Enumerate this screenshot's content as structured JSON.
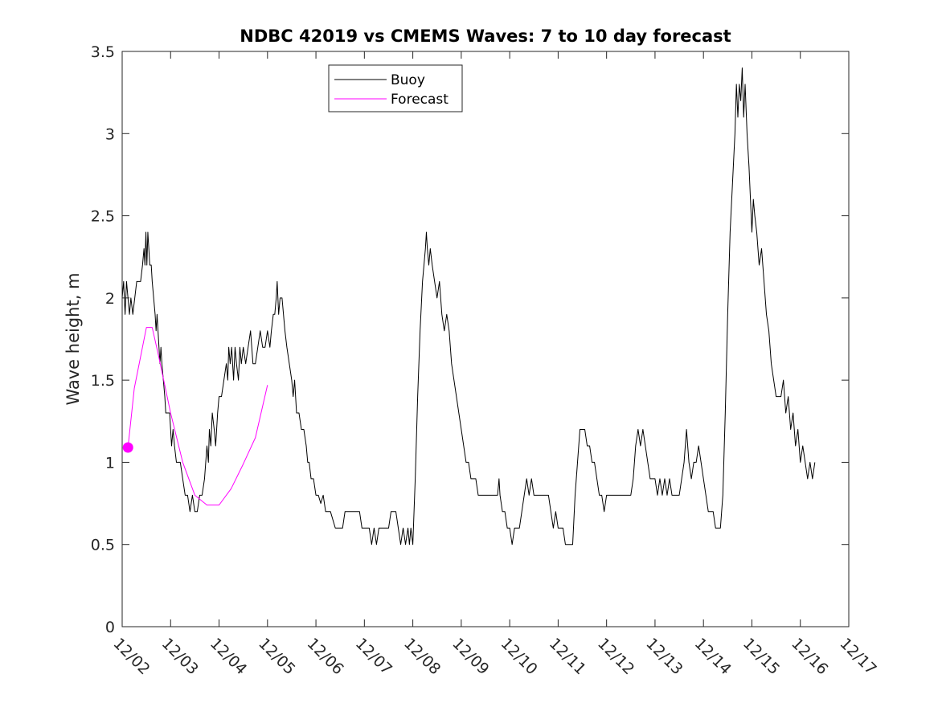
{
  "chart_data": {
    "type": "line",
    "title": "NDBC 42019 vs CMEMS Waves: 7 to 10 day forecast",
    "xlabel": "",
    "ylabel": "Wave height, m",
    "xlim": [
      0,
      15
    ],
    "ylim": [
      0,
      3.5
    ],
    "grid": false,
    "legend_position": "top-center",
    "x_ticks": [
      0,
      1,
      2,
      3,
      4,
      5,
      6,
      7,
      8,
      9,
      10,
      11,
      12,
      13,
      14,
      15
    ],
    "x_tick_labels": [
      "12/02",
      "12/03",
      "12/04",
      "12/05",
      "12/06",
      "12/07",
      "12/08",
      "12/09",
      "12/10",
      "12/11",
      "12/12",
      "12/13",
      "12/14",
      "12/15",
      "12/16",
      "12/17"
    ],
    "y_ticks": [
      0,
      0.5,
      1,
      1.5,
      2,
      2.5,
      3,
      3.5
    ],
    "y_tick_labels": [
      "0",
      "0.5",
      "1",
      "1.5",
      "2",
      "2.5",
      "3",
      "3.5"
    ],
    "x_unit": "days since 12/02 00:00",
    "series": [
      {
        "name": "Buoy",
        "color": "#000000",
        "points": [
          [
            0.0,
            2.0
          ],
          [
            0.03,
            2.1
          ],
          [
            0.06,
            1.9
          ],
          [
            0.09,
            2.1
          ],
          [
            0.12,
            2.0
          ],
          [
            0.15,
            1.9
          ],
          [
            0.18,
            2.0
          ],
          [
            0.22,
            1.9
          ],
          [
            0.26,
            2.0
          ],
          [
            0.3,
            2.1
          ],
          [
            0.38,
            2.1
          ],
          [
            0.42,
            2.2
          ],
          [
            0.45,
            2.3
          ],
          [
            0.47,
            2.2
          ],
          [
            0.49,
            2.4
          ],
          [
            0.51,
            2.2
          ],
          [
            0.53,
            2.4
          ],
          [
            0.55,
            2.3
          ],
          [
            0.57,
            2.2
          ],
          [
            0.6,
            2.2
          ],
          [
            0.62,
            2.1
          ],
          [
            0.65,
            2.0
          ],
          [
            0.68,
            1.9
          ],
          [
            0.7,
            1.8
          ],
          [
            0.72,
            1.9
          ],
          [
            0.74,
            1.8
          ],
          [
            0.76,
            1.7
          ],
          [
            0.78,
            1.6
          ],
          [
            0.8,
            1.7
          ],
          [
            0.82,
            1.6
          ],
          [
            0.85,
            1.5
          ],
          [
            0.88,
            1.4
          ],
          [
            0.9,
            1.3
          ],
          [
            0.98,
            1.3
          ],
          [
            1.0,
            1.2
          ],
          [
            1.02,
            1.1
          ],
          [
            1.05,
            1.2
          ],
          [
            1.08,
            1.1
          ],
          [
            1.12,
            1.0
          ],
          [
            1.2,
            1.0
          ],
          [
            1.25,
            0.9
          ],
          [
            1.3,
            0.8
          ],
          [
            1.35,
            0.8
          ],
          [
            1.4,
            0.7
          ],
          [
            1.45,
            0.8
          ],
          [
            1.5,
            0.7
          ],
          [
            1.55,
            0.7
          ],
          [
            1.6,
            0.8
          ],
          [
            1.65,
            0.8
          ],
          [
            1.7,
            0.9
          ],
          [
            1.75,
            1.1
          ],
          [
            1.78,
            1.0
          ],
          [
            1.8,
            1.2
          ],
          [
            1.83,
            1.1
          ],
          [
            1.86,
            1.3
          ],
          [
            1.9,
            1.2
          ],
          [
            1.93,
            1.1
          ],
          [
            1.97,
            1.3
          ],
          [
            2.0,
            1.4
          ],
          [
            2.05,
            1.4
          ],
          [
            2.1,
            1.5
          ],
          [
            2.15,
            1.6
          ],
          [
            2.18,
            1.5
          ],
          [
            2.2,
            1.7
          ],
          [
            2.23,
            1.6
          ],
          [
            2.26,
            1.7
          ],
          [
            2.3,
            1.5
          ],
          [
            2.33,
            1.7
          ],
          [
            2.36,
            1.6
          ],
          [
            2.4,
            1.5
          ],
          [
            2.43,
            1.7
          ],
          [
            2.46,
            1.6
          ],
          [
            2.5,
            1.7
          ],
          [
            2.55,
            1.6
          ],
          [
            2.6,
            1.7
          ],
          [
            2.65,
            1.8
          ],
          [
            2.7,
            1.6
          ],
          [
            2.75,
            1.6
          ],
          [
            2.8,
            1.7
          ],
          [
            2.85,
            1.8
          ],
          [
            2.9,
            1.7
          ],
          [
            2.95,
            1.7
          ],
          [
            3.0,
            1.8
          ],
          [
            3.05,
            1.7
          ],
          [
            3.08,
            1.8
          ],
          [
            3.12,
            1.9
          ],
          [
            3.15,
            1.9
          ],
          [
            3.18,
            2.0
          ],
          [
            3.2,
            2.1
          ],
          [
            3.23,
            1.9
          ],
          [
            3.26,
            2.0
          ],
          [
            3.3,
            2.0
          ],
          [
            3.33,
            1.9
          ],
          [
            3.36,
            1.8
          ],
          [
            3.4,
            1.7
          ],
          [
            3.45,
            1.6
          ],
          [
            3.5,
            1.5
          ],
          [
            3.53,
            1.4
          ],
          [
            3.56,
            1.5
          ],
          [
            3.6,
            1.3
          ],
          [
            3.65,
            1.3
          ],
          [
            3.7,
            1.2
          ],
          [
            3.75,
            1.2
          ],
          [
            3.8,
            1.1
          ],
          [
            3.83,
            1.0
          ],
          [
            3.86,
            1.0
          ],
          [
            3.9,
            0.9
          ],
          [
            3.95,
            0.9
          ],
          [
            4.0,
            0.8
          ],
          [
            4.05,
            0.8
          ],
          [
            4.1,
            0.75
          ],
          [
            4.15,
            0.8
          ],
          [
            4.2,
            0.7
          ],
          [
            4.3,
            0.7
          ],
          [
            4.4,
            0.6
          ],
          [
            4.55,
            0.6
          ],
          [
            4.6,
            0.7
          ],
          [
            4.9,
            0.7
          ],
          [
            4.95,
            0.6
          ],
          [
            5.1,
            0.6
          ],
          [
            5.15,
            0.5
          ],
          [
            5.2,
            0.6
          ],
          [
            5.25,
            0.5
          ],
          [
            5.3,
            0.6
          ],
          [
            5.5,
            0.6
          ],
          [
            5.55,
            0.7
          ],
          [
            5.65,
            0.7
          ],
          [
            5.7,
            0.6
          ],
          [
            5.75,
            0.5
          ],
          [
            5.8,
            0.6
          ],
          [
            5.85,
            0.5
          ],
          [
            5.9,
            0.6
          ],
          [
            5.93,
            0.5
          ],
          [
            5.96,
            0.6
          ],
          [
            6.0,
            0.5
          ],
          [
            6.05,
            0.9
          ],
          [
            6.1,
            1.4
          ],
          [
            6.15,
            1.8
          ],
          [
            6.2,
            2.1
          ],
          [
            6.23,
            2.2
          ],
          [
            6.26,
            2.3
          ],
          [
            6.28,
            2.4
          ],
          [
            6.3,
            2.3
          ],
          [
            6.33,
            2.2
          ],
          [
            6.36,
            2.3
          ],
          [
            6.4,
            2.2
          ],
          [
            6.45,
            2.1
          ],
          [
            6.5,
            2.0
          ],
          [
            6.55,
            2.1
          ],
          [
            6.6,
            1.9
          ],
          [
            6.65,
            1.8
          ],
          [
            6.7,
            1.9
          ],
          [
            6.75,
            1.8
          ],
          [
            6.8,
            1.6
          ],
          [
            6.85,
            1.5
          ],
          [
            6.9,
            1.4
          ],
          [
            6.95,
            1.3
          ],
          [
            7.0,
            1.2
          ],
          [
            7.05,
            1.1
          ],
          [
            7.1,
            1.0
          ],
          [
            7.15,
            1.0
          ],
          [
            7.2,
            0.9
          ],
          [
            7.3,
            0.9
          ],
          [
            7.35,
            0.8
          ],
          [
            7.75,
            0.8
          ],
          [
            7.78,
            0.9
          ],
          [
            7.8,
            0.8
          ],
          [
            7.85,
            0.7
          ],
          [
            7.9,
            0.7
          ],
          [
            7.95,
            0.6
          ],
          [
            8.0,
            0.6
          ],
          [
            8.05,
            0.5
          ],
          [
            8.1,
            0.6
          ],
          [
            8.2,
            0.6
          ],
          [
            8.25,
            0.7
          ],
          [
            8.3,
            0.8
          ],
          [
            8.35,
            0.9
          ],
          [
            8.4,
            0.8
          ],
          [
            8.45,
            0.9
          ],
          [
            8.5,
            0.8
          ],
          [
            8.8,
            0.8
          ],
          [
            8.85,
            0.7
          ],
          [
            8.9,
            0.6
          ],
          [
            8.95,
            0.7
          ],
          [
            9.0,
            0.6
          ],
          [
            9.1,
            0.6
          ],
          [
            9.15,
            0.5
          ],
          [
            9.3,
            0.5
          ],
          [
            9.35,
            0.8
          ],
          [
            9.4,
            1.0
          ],
          [
            9.45,
            1.2
          ],
          [
            9.55,
            1.2
          ],
          [
            9.6,
            1.1
          ],
          [
            9.65,
            1.1
          ],
          [
            9.7,
            1.0
          ],
          [
            9.75,
            1.0
          ],
          [
            9.8,
            0.9
          ],
          [
            9.85,
            0.8
          ],
          [
            9.9,
            0.8
          ],
          [
            9.95,
            0.7
          ],
          [
            10.0,
            0.8
          ],
          [
            10.5,
            0.8
          ],
          [
            10.55,
            0.9
          ],
          [
            10.6,
            1.1
          ],
          [
            10.65,
            1.2
          ],
          [
            10.7,
            1.1
          ],
          [
            10.75,
            1.2
          ],
          [
            10.8,
            1.1
          ],
          [
            10.85,
            1.0
          ],
          [
            10.9,
            0.9
          ],
          [
            11.0,
            0.9
          ],
          [
            11.05,
            0.8
          ],
          [
            11.1,
            0.9
          ],
          [
            11.15,
            0.8
          ],
          [
            11.2,
            0.9
          ],
          [
            11.25,
            0.8
          ],
          [
            11.3,
            0.9
          ],
          [
            11.35,
            0.8
          ],
          [
            11.5,
            0.8
          ],
          [
            11.55,
            0.9
          ],
          [
            11.6,
            1.0
          ],
          [
            11.65,
            1.2
          ],
          [
            11.7,
            1.0
          ],
          [
            11.75,
            0.9
          ],
          [
            11.8,
            1.0
          ],
          [
            11.85,
            1.0
          ],
          [
            11.9,
            1.1
          ],
          [
            11.95,
            1.0
          ],
          [
            12.0,
            0.9
          ],
          [
            12.05,
            0.8
          ],
          [
            12.1,
            0.7
          ],
          [
            12.2,
            0.7
          ],
          [
            12.25,
            0.6
          ],
          [
            12.35,
            0.6
          ],
          [
            12.4,
            0.8
          ],
          [
            12.45,
            1.3
          ],
          [
            12.5,
            1.9
          ],
          [
            12.55,
            2.4
          ],
          [
            12.6,
            2.7
          ],
          [
            12.65,
            3.0
          ],
          [
            12.68,
            3.3
          ],
          [
            12.71,
            3.1
          ],
          [
            12.74,
            3.3
          ],
          [
            12.77,
            3.2
          ],
          [
            12.8,
            3.4
          ],
          [
            12.83,
            3.1
          ],
          [
            12.86,
            3.3
          ],
          [
            12.9,
            3.0
          ],
          [
            12.94,
            2.8
          ],
          [
            12.97,
            2.6
          ],
          [
            13.0,
            2.4
          ],
          [
            13.03,
            2.6
          ],
          [
            13.06,
            2.5
          ],
          [
            13.1,
            2.4
          ],
          [
            13.15,
            2.2
          ],
          [
            13.2,
            2.3
          ],
          [
            13.25,
            2.1
          ],
          [
            13.3,
            1.9
          ],
          [
            13.35,
            1.8
          ],
          [
            13.4,
            1.6
          ],
          [
            13.45,
            1.5
          ],
          [
            13.5,
            1.4
          ],
          [
            13.6,
            1.4
          ],
          [
            13.65,
            1.5
          ],
          [
            13.7,
            1.3
          ],
          [
            13.75,
            1.4
          ],
          [
            13.8,
            1.2
          ],
          [
            13.85,
            1.3
          ],
          [
            13.9,
            1.1
          ],
          [
            13.95,
            1.2
          ],
          [
            14.0,
            1.0
          ],
          [
            14.05,
            1.1
          ],
          [
            14.1,
            1.0
          ],
          [
            14.15,
            0.9
          ],
          [
            14.2,
            1.0
          ],
          [
            14.25,
            0.9
          ],
          [
            14.3,
            1.0
          ]
        ]
      },
      {
        "name": "Forecast",
        "color": "#ff00ff",
        "points": [
          [
            0.12,
            1.09
          ],
          [
            0.25,
            1.45
          ],
          [
            0.5,
            1.82
          ],
          [
            0.62,
            1.82
          ],
          [
            0.75,
            1.65
          ],
          [
            1.0,
            1.3
          ],
          [
            1.25,
            1.0
          ],
          [
            1.5,
            0.8
          ],
          [
            1.75,
            0.74
          ],
          [
            2.0,
            0.74
          ],
          [
            2.25,
            0.84
          ],
          [
            2.5,
            0.99
          ],
          [
            2.75,
            1.15
          ],
          [
            3.0,
            1.47
          ]
        ],
        "marker_point": [
          0.12,
          1.09
        ]
      }
    ]
  }
}
